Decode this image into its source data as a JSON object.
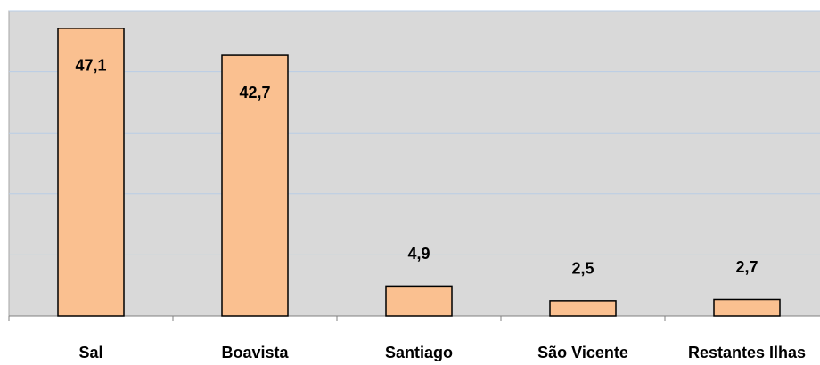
{
  "chart_data": {
    "type": "bar",
    "categories": [
      "Sal",
      "Boavista",
      "Santiago",
      "São Vicente",
      "Restantes Ilhas"
    ],
    "values": [
      47.1,
      42.7,
      4.9,
      2.5,
      2.7
    ],
    "value_labels": [
      "47,1",
      "42,7",
      "4,9",
      "2,5",
      "2,7"
    ],
    "color": "#fac090",
    "ylim": [
      0,
      50
    ],
    "yticks": [
      0,
      10,
      20,
      30,
      40,
      50
    ],
    "grid": true
  }
}
